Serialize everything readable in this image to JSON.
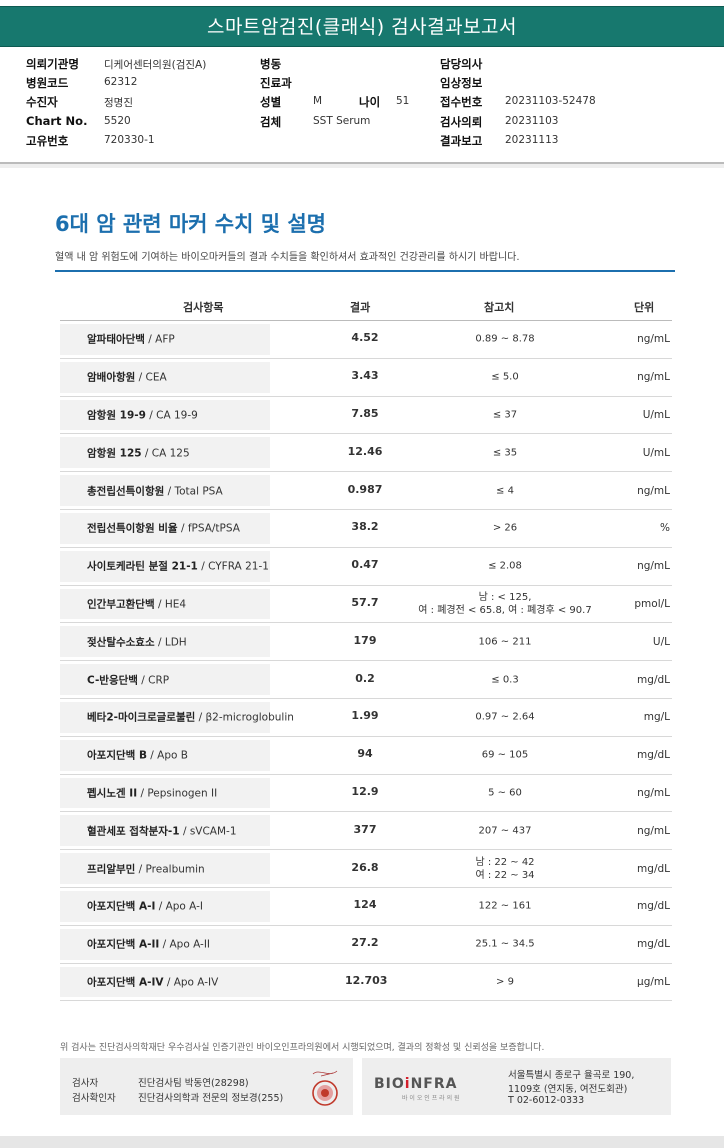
{
  "header": {
    "title": "스마트암검진(클래식) 검사결과보고서"
  },
  "info": {
    "col1": [
      {
        "label": "의뢰기관명",
        "value": "디케어센터의원(검진A)"
      },
      {
        "label": "병원코드",
        "value": "62312"
      },
      {
        "label": "수진자",
        "value": "정명진"
      },
      {
        "label": "Chart No.",
        "value": "5520"
      },
      {
        "label": "고유번호",
        "value": "720330-1"
      }
    ],
    "col2": [
      {
        "label": "병동",
        "value": ""
      },
      {
        "label": "진료과",
        "value": ""
      },
      {
        "label": "성별",
        "value": "M"
      },
      {
        "label": "검체",
        "value": "SST Serum"
      }
    ],
    "age": {
      "label": "나이",
      "value": "51"
    },
    "col3": [
      {
        "label": "담당의사",
        "value": ""
      },
      {
        "label": "임상정보",
        "value": ""
      },
      {
        "label": "접수번호",
        "value": "20231103-52478"
      },
      {
        "label": "검사의뢰",
        "value": "20231103"
      },
      {
        "label": "결과보고",
        "value": "20231113"
      }
    ]
  },
  "section": {
    "title": "6대 암 관련 마커 수치 및 설명",
    "description": "혈액 내 암 위험도에 기여하는 바이오마커들의 결과 수치들을 확인하셔서 효과적인 건강관리를 하시기 바랍니다."
  },
  "table": {
    "headers": {
      "item": "검사항목",
      "result": "결과",
      "reference": "참고치",
      "unit": "단위"
    },
    "rows": [
      {
        "name_ko": "알파태아단백",
        "name_en": " / AFP",
        "result": "4.52",
        "ref": [
          "0.89 ~ 8.78"
        ],
        "unit": "ng/mL"
      },
      {
        "name_ko": "암배아항원",
        "name_en": " / CEA",
        "result": "3.43",
        "ref": [
          "≤ 5.0"
        ],
        "unit": "ng/mL"
      },
      {
        "name_ko": "암항원 19-9",
        "name_en": " / CA 19-9",
        "result": "7.85",
        "ref": [
          "≤ 37"
        ],
        "unit": "U/mL"
      },
      {
        "name_ko": "암항원 125",
        "name_en": " / CA 125",
        "result": "12.46",
        "ref": [
          "≤ 35"
        ],
        "unit": "U/mL"
      },
      {
        "name_ko": "총전립선특이항원",
        "name_en": " / Total PSA",
        "result": "0.987",
        "ref": [
          "≤ 4"
        ],
        "unit": "ng/mL"
      },
      {
        "name_ko": "전립선특이항원 비율",
        "name_en": " / fPSA/tPSA",
        "result": "38.2",
        "ref": [
          "> 26"
        ],
        "unit": "%"
      },
      {
        "name_ko": "사이토케라틴 분절 21-1",
        "name_en": " / CYFRA 21-1",
        "result": "0.47",
        "ref": [
          "≤ 2.08"
        ],
        "unit": "ng/mL"
      },
      {
        "name_ko": "인간부고환단백",
        "name_en": " / HE4",
        "result": "57.7",
        "ref": [
          "남 : < 125,",
          "여 : 폐경전 < 65.8, 여 : 폐경후 < 90.7"
        ],
        "unit": "pmol/L"
      },
      {
        "name_ko": "젖산탈수소효소",
        "name_en": " / LDH",
        "result": "179",
        "ref": [
          "106 ~ 211"
        ],
        "unit": "U/L"
      },
      {
        "name_ko": "C-반응단백",
        "name_en": " / CRP",
        "result": "0.2",
        "ref": [
          "≤ 0.3"
        ],
        "unit": "mg/dL"
      },
      {
        "name_ko": "베타2-마이크로글로불린",
        "name_en": " / β2-microglobulin",
        "result": "1.99",
        "ref": [
          "0.97 ~ 2.64"
        ],
        "unit": "mg/L"
      },
      {
        "name_ko": "아포지단백 B",
        "name_en": " / Apo B",
        "result": "94",
        "ref": [
          "69 ~ 105"
        ],
        "unit": "mg/dL"
      },
      {
        "name_ko": "펩시노겐 II",
        "name_en": " / Pepsinogen II",
        "result": "12.9",
        "ref": [
          "5 ~ 60"
        ],
        "unit": "ng/mL"
      },
      {
        "name_ko": "혈관세포 접착분자-1",
        "name_en": " / sVCAM-1",
        "result": "377",
        "ref": [
          "207 ~ 437"
        ],
        "unit": "ng/mL"
      },
      {
        "name_ko": "프리알부민",
        "name_en": " / Prealbumin",
        "result": "26.8",
        "ref": [
          "남 : 22 ~ 42",
          "여 : 22 ~ 34"
        ],
        "unit": "mg/dL"
      },
      {
        "name_ko": "아포지단백 A-I",
        "name_en": " / Apo A-I",
        "result": "124",
        "ref": [
          "122 ~ 161"
        ],
        "unit": "mg/dL"
      },
      {
        "name_ko": "아포지단백 A-II",
        "name_en": " / Apo A-II",
        "result": "27.2",
        "ref": [
          "25.1 ~ 34.5"
        ],
        "unit": "mg/dL"
      },
      {
        "name_ko": "아포지단백 A-IV",
        "name_en": " / Apo A-IV",
        "result": "12.703",
        "ref": [
          "> 9"
        ],
        "unit": "μg/mL"
      }
    ]
  },
  "footer": {
    "note": "위 검사는 진단검사의학재단 우수검사실 인증기관인 바이오인프라의원에서 시행되었으며, 결과의 정확성 및 신뢰성을 보증합니다.",
    "tester_label": "검사자",
    "tester_value": "진단검사팀 박동연(28298)",
    "verifier_label": "검사확인자",
    "verifier_value": "진단검사의학과 전문의 정보경(255)",
    "logo_main": "BIOiNFRA",
    "logo_sub": "바 이 오 인 프 라 의 원",
    "address_line1": "서울특별시 종로구 율곡로 190,",
    "address_line2": "1109호 (연지동, 여전도회관)",
    "phone": "T 02-6012-0333"
  }
}
